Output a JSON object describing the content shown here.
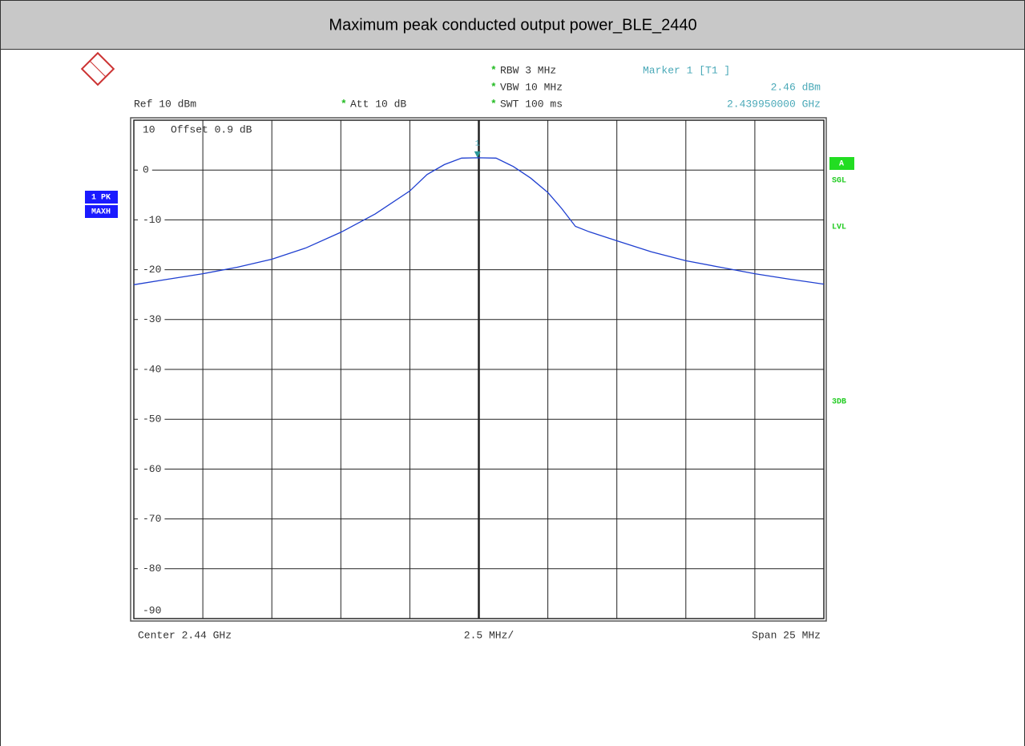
{
  "chart_data": {
    "type": "line",
    "title": "Maximum peak conducted output power_BLE_2440",
    "ref": "Ref  10 dBm",
    "settings": [
      {
        "star": "*",
        "text": "Att  10 dB"
      },
      {
        "star": "*",
        "text": "RBW 3 MHz"
      },
      {
        "star": "*",
        "text": "VBW 10 MHz"
      },
      {
        "star": "*",
        "text": "SWT 100 ms"
      }
    ],
    "offset": "Offset   0.9 dB",
    "trace_tags": [
      "1 PK",
      "MAXH"
    ],
    "side_labels": [
      "A",
      "SGL",
      "LVL",
      "3DB"
    ],
    "x_labels": [
      "Center 2.44 GHz",
      "2.5 MHz/",
      "Span 25 MHz"
    ],
    "marker": {
      "label": "Marker 1 [T1 ]",
      "tag": "1",
      "x": 2.43995,
      "value": 2.46,
      "value_label": "2.46 dBm",
      "x_label": "2.439950000 GHz"
    },
    "xlim": [
      2.4275,
      2.4525
    ],
    "xticks": [
      2.4275,
      2.43,
      2.4325,
      2.435,
      2.4375,
      2.44,
      2.4425,
      2.445,
      2.4475,
      2.45,
      2.4525
    ],
    "ylim": [
      -90,
      10
    ],
    "yticks": [
      10,
      0,
      -10,
      -20,
      -30,
      -40,
      -50,
      -60,
      -70,
      -80,
      -90
    ],
    "grid": true,
    "series": [
      {
        "name": "1 PK",
        "color": "#1f3fd0",
        "x": [
          2.4275,
          2.42875,
          2.43,
          2.43125,
          2.4325,
          2.43375,
          2.435,
          2.43625,
          2.4375,
          2.438125,
          2.43875,
          2.439375,
          2.43995,
          2.440625,
          2.44125,
          2.441875,
          2.4425,
          2.443,
          2.4435,
          2.444,
          2.445,
          2.44625,
          2.4475,
          2.44875,
          2.45,
          2.45125,
          2.4525
        ],
        "values": [
          -23.0,
          -21.9,
          -20.8,
          -19.5,
          -17.9,
          -15.6,
          -12.5,
          -8.8,
          -4.2,
          -0.9,
          1.1,
          2.4,
          2.46,
          2.4,
          0.7,
          -1.6,
          -4.5,
          -7.7,
          -11.3,
          -12.4,
          -14.2,
          -16.4,
          -18.2,
          -19.5,
          -20.8,
          -21.9,
          -22.9
        ]
      }
    ]
  }
}
